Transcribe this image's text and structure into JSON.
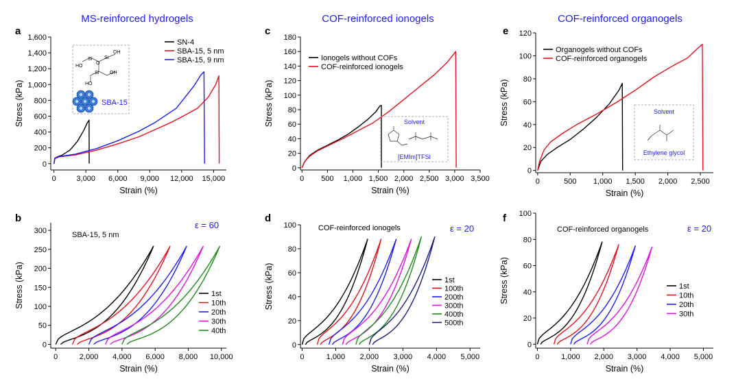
{
  "column_titles": [
    "MS-reinforced hydrogels",
    "COF-reinforced ionogels",
    "COF-reinforced organogels"
  ],
  "chart_data": [
    {
      "panel": "a",
      "type": "line",
      "xlabel": "Strain (%)",
      "ylabel": "Stress (kPa)",
      "xlim": [
        -300,
        16200
      ],
      "ylim": [
        -80,
        1600
      ],
      "xticks": [
        0,
        3000,
        6000,
        9000,
        12000,
        15000
      ],
      "xtick_labels": [
        "0",
        "3,000",
        "6,000",
        "9,000",
        "12,000",
        "15,000"
      ],
      "yticks": [
        0,
        200,
        400,
        600,
        800,
        1000,
        1200,
        1400,
        1600
      ],
      "ytick_labels": [
        "0",
        "200",
        "400",
        "600",
        "800",
        "1,000",
        "1,200",
        "1,400",
        "1,600"
      ],
      "legend_position": "top-right",
      "series": [
        {
          "name": "SN-4",
          "color": "#000000",
          "points": [
            [
              0,
              0
            ],
            [
              80,
              60
            ],
            [
              300,
              85
            ],
            [
              800,
              110
            ],
            [
              1500,
              170
            ],
            [
              2200,
              280
            ],
            [
              2800,
              420
            ],
            [
              3150,
              520
            ],
            [
              3300,
              550
            ],
            [
              3310,
              0
            ]
          ]
        },
        {
          "name": "SBA-15, 5 nm",
          "color": "#e8101a",
          "points": [
            [
              0,
              0
            ],
            [
              80,
              65
            ],
            [
              500,
              85
            ],
            [
              2000,
              110
            ],
            [
              4000,
              170
            ],
            [
              6000,
              250
            ],
            [
              8000,
              340
            ],
            [
              10000,
              460
            ],
            [
              11000,
              520
            ],
            [
              12000,
              590
            ],
            [
              13500,
              700
            ],
            [
              14500,
              840
            ],
            [
              15200,
              1000
            ],
            [
              15500,
              1110
            ],
            [
              15530,
              0
            ]
          ]
        },
        {
          "name": "SBA-15, 9 nm",
          "color": "#1a1aff",
          "points": [
            [
              0,
              0
            ],
            [
              80,
              70
            ],
            [
              500,
              90
            ],
            [
              2000,
              120
            ],
            [
              4000,
              190
            ],
            [
              6000,
              290
            ],
            [
              8000,
              410
            ],
            [
              9500,
              520
            ],
            [
              10500,
              610
            ],
            [
              11500,
              700
            ],
            [
              12500,
              870
            ],
            [
              13200,
              990
            ],
            [
              13800,
              1120
            ],
            [
              14100,
              1160
            ],
            [
              14150,
              0
            ]
          ]
        }
      ],
      "inset": {
        "label": "SBA-15",
        "atoms": [
          "Si",
          "O",
          "OH",
          "HO"
        ]
      }
    },
    {
      "panel": "b",
      "type": "line",
      "xlabel": "Strain (%)",
      "ylabel": "Stress (kPa)",
      "xlim": [
        -300,
        10300
      ],
      "ylim": [
        -10,
        320
      ],
      "xticks": [
        0,
        2000,
        4000,
        6000,
        8000,
        10000
      ],
      "xtick_labels": [
        "0",
        "2,000",
        "4,000",
        "6,000",
        "8,000",
        "10,000"
      ],
      "yticks": [
        0,
        50,
        100,
        150,
        200,
        250,
        300
      ],
      "ytick_labels": [
        "0",
        "50",
        "100",
        "150",
        "200",
        "250",
        "300"
      ],
      "annotation": "SBA-15, 5 nm",
      "strain_label": "ε = 60",
      "legend_position": "right",
      "series": [
        {
          "name": "1st",
          "color": "#000000",
          "offset": 0,
          "max_strain": 5900,
          "peak": 258
        },
        {
          "name": "10th",
          "color": "#e8101a",
          "offset": 1000,
          "max_strain": 6900,
          "peak": 258
        },
        {
          "name": "20th",
          "color": "#1a1aff",
          "offset": 2000,
          "max_strain": 7900,
          "peak": 258
        },
        {
          "name": "30th",
          "color": "#e010e0",
          "offset": 3000,
          "max_strain": 8900,
          "peak": 258
        },
        {
          "name": "40th",
          "color": "#1a8a1a",
          "offset": 4000,
          "max_strain": 9900,
          "peak": 258
        }
      ]
    },
    {
      "panel": "c",
      "type": "line",
      "xlabel": "Strain (%)",
      "ylabel": "Stress (kPa)",
      "xlim": [
        -30,
        3500
      ],
      "ylim": [
        -3,
        180
      ],
      "xticks": [
        0,
        500,
        1000,
        1500,
        2000,
        2500,
        3000,
        3500
      ],
      "xtick_labels": [
        "0",
        "500",
        "1,000",
        "1,500",
        "2,000",
        "2,500",
        "3,000",
        "3,500"
      ],
      "yticks": [
        0,
        20,
        40,
        60,
        80,
        100,
        120,
        140,
        160,
        180
      ],
      "ytick_labels": [
        "0",
        "20",
        "40",
        "60",
        "80",
        "100",
        "120",
        "140",
        "160",
        "180"
      ],
      "legend_position": "top-left",
      "series": [
        {
          "name": "Ionogels without COFs",
          "color": "#000000",
          "points": [
            [
              0,
              0
            ],
            [
              50,
              8
            ],
            [
              150,
              17
            ],
            [
              300,
              24
            ],
            [
              500,
              31
            ],
            [
              700,
              38
            ],
            [
              900,
              46
            ],
            [
              1100,
              56
            ],
            [
              1300,
              67
            ],
            [
              1450,
              77
            ],
            [
              1530,
              85
            ],
            [
              1560,
              86
            ],
            [
              1560,
              0
            ]
          ]
        },
        {
          "name": "COF-reinforced ionogels",
          "color": "#e8101a",
          "points": [
            [
              0,
              0
            ],
            [
              50,
              8
            ],
            [
              150,
              16
            ],
            [
              300,
              23
            ],
            [
              500,
              30
            ],
            [
              800,
              40
            ],
            [
              1100,
              51
            ],
            [
              1400,
              62
            ],
            [
              1700,
              77
            ],
            [
              2000,
              94
            ],
            [
              2300,
              111
            ],
            [
              2600,
              128
            ],
            [
              2850,
              145
            ],
            [
              3020,
              160
            ],
            [
              3030,
              0
            ]
          ]
        }
      ],
      "inset": {
        "title": "Solvent",
        "caption": "[EMIm]TFSI"
      }
    },
    {
      "panel": "d",
      "type": "line",
      "xlabel": "Strain (%)",
      "ylabel": "Stress (kPa)",
      "xlim": [
        -50,
        5300
      ],
      "ylim": [
        -3,
        100
      ],
      "xticks": [
        0,
        1000,
        2000,
        3000,
        4000,
        5000
      ],
      "xtick_labels": [
        "0",
        "1,000",
        "2,000",
        "3,000",
        "4,000",
        "5,000"
      ],
      "yticks": [
        0,
        20,
        40,
        60,
        80,
        100
      ],
      "ytick_labels": [
        "0",
        "20",
        "40",
        "60",
        "80",
        "100"
      ],
      "annotation": "COF-reinforced ionogels",
      "strain_label": "ε = 20",
      "legend_position": "bottom-right",
      "series": [
        {
          "name": "1st",
          "color": "#000000",
          "offset": 0,
          "max_strain": 1950,
          "peak": 88
        },
        {
          "name": "100th",
          "color": "#e8101a",
          "offset": 450,
          "max_strain": 2350,
          "peak": 88
        },
        {
          "name": "200th",
          "color": "#1a1aff",
          "offset": 800,
          "max_strain": 2800,
          "peak": 88
        },
        {
          "name": "300th",
          "color": "#e010e0",
          "offset": 1200,
          "max_strain": 3250,
          "peak": 88
        },
        {
          "name": "400th",
          "color": "#1a8a1a",
          "offset": 1600,
          "max_strain": 3550,
          "peak": 90
        },
        {
          "name": "500th",
          "color": "#1a1a80",
          "offset": 2000,
          "max_strain": 3950,
          "peak": 90
        }
      ]
    },
    {
      "panel": "e",
      "type": "line",
      "xlabel": "Strain (%)",
      "ylabel": "Stress (kPa)",
      "xlim": [
        -30,
        2700
      ],
      "ylim": [
        -2,
        120
      ],
      "xticks": [
        0,
        500,
        1000,
        1500,
        2000,
        2500
      ],
      "xtick_labels": [
        "0",
        "500",
        "1,000",
        "1,500",
        "2,000",
        "2,500"
      ],
      "yticks": [
        0,
        20,
        40,
        60,
        80,
        100,
        120
      ],
      "ytick_labels": [
        "0",
        "20",
        "40",
        "60",
        "80",
        "100",
        "120"
      ],
      "legend_position": "top-left",
      "series": [
        {
          "name": "Organogels without COFs",
          "color": "#000000",
          "points": [
            [
              0,
              0
            ],
            [
              50,
              8
            ],
            [
              150,
              14
            ],
            [
              300,
              20
            ],
            [
              500,
              27
            ],
            [
              700,
              36
            ],
            [
              900,
              46
            ],
            [
              1100,
              58
            ],
            [
              1250,
              70
            ],
            [
              1300,
              76
            ],
            [
              1305,
              0
            ]
          ]
        },
        {
          "name": "COF-reinforced organogels",
          "color": "#e8101a",
          "points": [
            [
              0,
              0
            ],
            [
              30,
              8
            ],
            [
              100,
              18
            ],
            [
              200,
              25
            ],
            [
              400,
              33
            ],
            [
              600,
              40
            ],
            [
              900,
              49
            ],
            [
              1200,
              59
            ],
            [
              1500,
              70
            ],
            [
              1800,
              82
            ],
            [
              2100,
              92
            ],
            [
              2300,
              98
            ],
            [
              2450,
              106
            ],
            [
              2530,
              110
            ],
            [
              2540,
              0
            ]
          ]
        }
      ],
      "inset": {
        "title": "Solvent",
        "caption": "Ethylene glycol"
      }
    },
    {
      "panel": "f",
      "type": "line",
      "xlabel": "Strain (%)",
      "ylabel": "Stress (kPa)",
      "xlim": [
        -50,
        5300
      ],
      "ylim": [
        -3,
        100
      ],
      "xticks": [
        0,
        1000,
        2000,
        3000,
        4000,
        5000
      ],
      "xtick_labels": [
        "0",
        "1,000",
        "2,000",
        "3,000",
        "4,000",
        "5,000"
      ],
      "yticks": [
        0,
        20,
        40,
        60,
        80,
        100
      ],
      "ytick_labels": [
        "0",
        "20",
        "40",
        "60",
        "80",
        "100"
      ],
      "annotation": "COF-reinforced organogels",
      "strain_label": "ε = 20",
      "legend_position": "bottom-left",
      "series": [
        {
          "name": "1st",
          "color": "#000000",
          "offset": 0,
          "max_strain": 1950,
          "peak": 78
        },
        {
          "name": "10th",
          "color": "#e8101a",
          "offset": 500,
          "max_strain": 2450,
          "peak": 76
        },
        {
          "name": "20th",
          "color": "#1a1aff",
          "offset": 1000,
          "max_strain": 2950,
          "peak": 75
        },
        {
          "name": "30th",
          "color": "#e010e0",
          "offset": 1500,
          "max_strain": 3450,
          "peak": 74
        }
      ]
    }
  ]
}
